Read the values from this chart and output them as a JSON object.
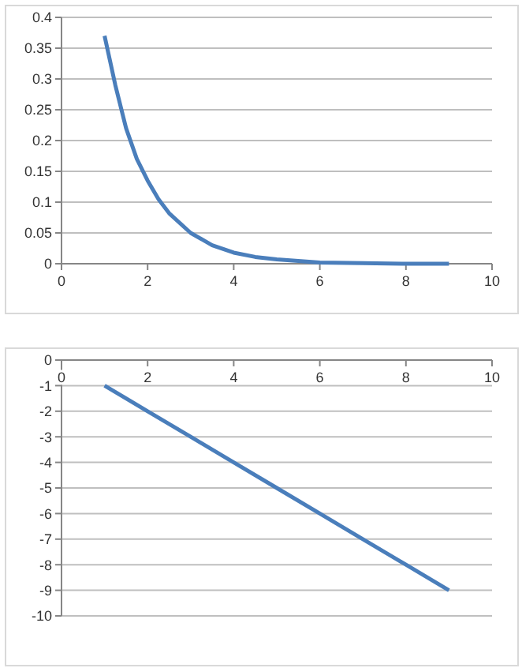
{
  "chart_data": [
    {
      "type": "line",
      "x": [
        1,
        1.25,
        1.5,
        1.75,
        2,
        2.25,
        2.5,
        3,
        3.5,
        4,
        4.5,
        5,
        6,
        7,
        8,
        9
      ],
      "series": [
        {
          "color": "#4a7ebb",
          "values": [
            0.37,
            0.29,
            0.22,
            0.17,
            0.135,
            0.105,
            0.082,
            0.05,
            0.03,
            0.018,
            0.011,
            0.007,
            0.002,
            0.001,
            0,
            0
          ]
        }
      ],
      "xlim": [
        0,
        10
      ],
      "xticks": [
        0,
        2,
        4,
        6,
        8,
        10
      ],
      "ylim": [
        0,
        0.4
      ],
      "yticks": [
        0,
        0.05,
        0.1,
        0.15,
        0.2,
        0.25,
        0.3,
        0.35,
        0.4
      ],
      "grid": "y",
      "marker": "none",
      "line_style": "solid"
    },
    {
      "type": "line",
      "x": [
        1,
        2,
        3,
        4,
        5,
        6,
        7,
        8,
        9
      ],
      "series": [
        {
          "color": "#4a7ebb",
          "values": [
            -1,
            -2,
            -3,
            -4,
            -5,
            -6,
            -7,
            -8,
            -9
          ]
        }
      ],
      "xlim": [
        0,
        10
      ],
      "xticks": [
        0,
        2,
        4,
        6,
        8,
        10
      ],
      "ylim": [
        -10,
        0
      ],
      "yticks": [
        -10,
        -9,
        -8,
        -7,
        -6,
        -5,
        -4,
        -3,
        -2,
        -1,
        0
      ],
      "grid": "y",
      "marker": "none",
      "line_style": "solid"
    }
  ]
}
